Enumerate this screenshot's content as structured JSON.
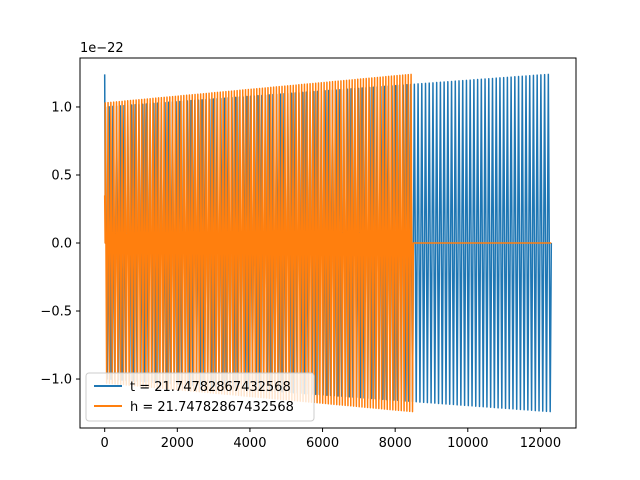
{
  "chart_data": {
    "type": "line",
    "title": "",
    "xlabel": "",
    "ylabel": "",
    "xlim": [
      -680,
      12980
    ],
    "ylim": [
      -1.36,
      1.36
    ],
    "y_offset_text": "1e−22",
    "x_ticks": [
      0,
      2000,
      4000,
      6000,
      8000,
      10000,
      12000
    ],
    "x_tick_labels": [
      "0",
      "2000",
      "4000",
      "6000",
      "8000",
      "10000",
      "12000"
    ],
    "y_ticks": [
      -1.0,
      -0.5,
      0.0,
      0.5,
      1.0
    ],
    "y_tick_labels": [
      "−1.0",
      "−0.5",
      "0.0",
      "0.5",
      "1.0"
    ],
    "grid": false,
    "legend_position": "lower-left",
    "series": [
      {
        "name": "t = 21.74782867432568",
        "color": "#1f77b4",
        "x_start": 0,
        "x_end": 12300,
        "start_spike": 1.24,
        "amplitude_start": 1.0,
        "amplitude_end": 1.24,
        "oscillations": 120,
        "flat_value_after": null
      },
      {
        "name": "h = 21.74782867432568",
        "color": "#ff7f0e",
        "x_start": 0,
        "x_end": 8500,
        "start_spike": 0.35,
        "amplitude_start": 1.03,
        "amplitude_end": 1.24,
        "oscillations": 110,
        "flat_value_after": 0.0,
        "flat_until": 12300
      }
    ]
  }
}
